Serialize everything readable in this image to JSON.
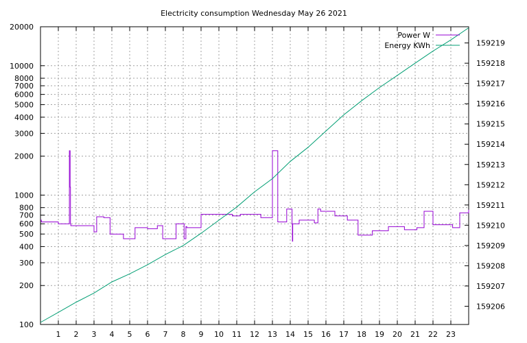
{
  "chart_data": {
    "type": "line",
    "title": "Electricity consumption Wednesday May 26 2021",
    "xlabel": "",
    "ylabel": "",
    "y2label": "",
    "xlim": [
      0,
      24
    ],
    "ylim": [
      100,
      20000
    ],
    "y_scale": "log",
    "y2lim": [
      159205.1,
      159219.8
    ],
    "grid": true,
    "legend_position": "top-right",
    "x_ticks": [
      1,
      2,
      3,
      4,
      5,
      6,
      7,
      8,
      9,
      10,
      11,
      12,
      13,
      14,
      15,
      16,
      17,
      18,
      19,
      20,
      21,
      22,
      23
    ],
    "y_ticks": [
      {
        "value": 100,
        "label": "100"
      },
      {
        "value": 200,
        "label": "200"
      },
      {
        "value": 300,
        "label": "300"
      },
      {
        "value": 400,
        "label": "400"
      },
      {
        "value": 500,
        "label": "500"
      },
      {
        "value": 600,
        "label": "600"
      },
      {
        "value": 700,
        "label": "700"
      },
      {
        "value": 800,
        "label": "800"
      },
      {
        "value": 1000,
        "label": "1000"
      },
      {
        "value": 2000,
        "label": "2000"
      },
      {
        "value": 3000,
        "label": "3000"
      },
      {
        "value": 4000,
        "label": "4000"
      },
      {
        "value": 5000,
        "label": "5000"
      },
      {
        "value": 6000,
        "label": "6000"
      },
      {
        "value": 7000,
        "label": "7000"
      },
      {
        "value": 8000,
        "label": "8000"
      },
      {
        "value": 10000,
        "label": "10000"
      },
      {
        "value": 20000,
        "label": "20000"
      }
    ],
    "y2_ticks": [
      {
        "value": 159206,
        "label": "159206"
      },
      {
        "value": 159207,
        "label": "159207"
      },
      {
        "value": 159208,
        "label": "159208"
      },
      {
        "value": 159209,
        "label": "159209"
      },
      {
        "value": 159210,
        "label": "159210"
      },
      {
        "value": 159211,
        "label": "159211"
      },
      {
        "value": 159212,
        "label": "159212"
      },
      {
        "value": 159213,
        "label": "159213"
      },
      {
        "value": 159214,
        "label": "159214"
      },
      {
        "value": 159215,
        "label": "159215"
      },
      {
        "value": 159216,
        "label": "159216"
      },
      {
        "value": 159217,
        "label": "159217"
      },
      {
        "value": 159218,
        "label": "159218"
      },
      {
        "value": 159219,
        "label": "159219"
      }
    ],
    "series": [
      {
        "name": "Power W",
        "color": "#9400d3",
        "axis": "y",
        "step": true,
        "x": [
          0,
          0.05,
          1.0,
          1.6,
          1.62,
          1.66,
          1.68,
          1.7,
          1.72,
          3.0,
          3.15,
          3.55,
          3.9,
          4.65,
          5.0,
          5.3,
          6.0,
          6.55,
          6.85,
          7.05,
          7.6,
          7.65,
          7.75,
          7.8,
          8.05,
          8.15,
          8.2,
          8.45,
          8.55,
          9.0,
          10.5,
          10.75,
          11.2,
          12.0,
          12.35,
          12.45,
          13.0,
          13.3,
          13.35,
          13.4,
          13.8,
          14.05,
          14.1,
          14.12,
          14.14,
          14.2,
          14.25,
          14.5,
          15.0,
          15.35,
          15.55,
          15.7,
          16.1,
          16.5,
          16.7,
          17.2,
          17.8,
          18.2,
          18.6,
          19.0,
          19.3,
          19.5,
          20.0,
          20.4,
          20.8,
          21.1,
          21.5,
          22.0,
          22.5,
          23.1,
          23.5,
          24.0
        ],
        "y": [
          640,
          620,
          600,
          600,
          2200,
          1150,
          600,
          580,
          580,
          520,
          680,
          670,
          500,
          460,
          460,
          560,
          550,
          580,
          460,
          460,
          600,
          600,
          600,
          600,
          460,
          570,
          560,
          560,
          560,
          710,
          710,
          690,
          710,
          710,
          670,
          670,
          2200,
          620,
          620,
          620,
          780,
          780,
          600,
          440,
          600,
          600,
          600,
          640,
          640,
          610,
          780,
          750,
          750,
          690,
          690,
          640,
          490,
          490,
          530,
          530,
          530,
          570,
          570,
          540,
          540,
          560,
          750,
          590,
          590,
          560,
          730,
          770
        ]
      },
      {
        "name": "Energy KWh",
        "color": "#009e73",
        "axis": "y2",
        "step": false,
        "x": [
          0,
          1,
          2,
          3,
          4,
          5,
          6,
          7,
          8,
          9,
          10,
          11,
          12,
          13,
          14,
          15,
          16,
          17,
          18,
          19,
          20,
          21,
          22,
          23,
          24
        ],
        "y": [
          159205.2,
          159205.7,
          159206.2,
          159206.65,
          159207.2,
          159207.6,
          159208.05,
          159208.55,
          159209.0,
          159209.6,
          159210.25,
          159210.9,
          159211.65,
          159212.3,
          159213.15,
          159213.85,
          159214.65,
          159215.45,
          159216.15,
          159216.8,
          159217.4,
          159218.0,
          159218.6,
          159219.15,
          159219.75
        ]
      }
    ]
  }
}
